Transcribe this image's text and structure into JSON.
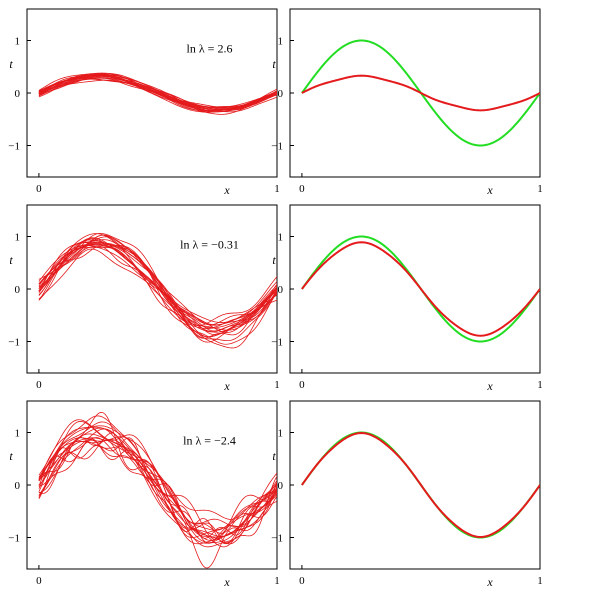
{
  "figure": {
    "panels": [
      {
        "id": "row1-left",
        "annotation": "ln λ = 2.6",
        "mode": "ensemble",
        "amplitude": 0.32,
        "spread": 0.04,
        "wiggle": 0.02,
        "seed": 3
      },
      {
        "id": "row1-right",
        "annotation": "",
        "mode": "mean",
        "amplitude": 0.32,
        "seed": 0
      },
      {
        "id": "row2-left",
        "annotation": "ln λ = −0.31",
        "mode": "ensemble",
        "amplitude": 0.88,
        "spread": 0.18,
        "wiggle": 0.12,
        "seed": 11
      },
      {
        "id": "row2-right",
        "annotation": "",
        "mode": "mean",
        "amplitude": 0.88,
        "seed": 0
      },
      {
        "id": "row3-left",
        "annotation": "ln λ = −2.4",
        "mode": "ensemble",
        "amplitude": 1.0,
        "spread": 0.22,
        "wiggle": 0.25,
        "seed": 27
      },
      {
        "id": "row3-right",
        "annotation": "",
        "mode": "mean",
        "amplitude": 0.98,
        "seed": 0
      }
    ]
  },
  "chart_data": {
    "type": "line",
    "xlabel": "x",
    "ylabel": "t",
    "xlim": [
      -0.05,
      1.0
    ],
    "ylim": [
      -1.6,
      1.6
    ],
    "xticks": [
      0,
      1
    ],
    "yticks": [
      -1,
      0,
      1
    ],
    "ytick_labels": [
      "−1",
      "0",
      "1"
    ],
    "true_function": "sin(2πx)",
    "colors": {
      "fits": "#e41a1c",
      "true": "#22dd22",
      "mean": "#e41a1c"
    },
    "ensemble_size": 20,
    "panels": [
      {
        "annotation": "ln λ = 2.6",
        "series_amplitude_mean": 0.32
      },
      {
        "annotation": "",
        "series": [
          {
            "name": "",
            "values_fn": "sin(2πx)"
          },
          {
            "name": "",
            "amplitude": 0.32
          }
        ]
      },
      {
        "annotation": "ln λ = −0.31",
        "series_amplitude_mean": 0.88
      },
      {
        "annotation": "",
        "series": [
          {
            "name": "",
            "values_fn": "sin(2πx)"
          },
          {
            "name": "",
            "amplitude": 0.88
          }
        ]
      },
      {
        "annotation": "ln λ = −2.4",
        "series_amplitude_mean": 1.0
      },
      {
        "annotation": "",
        "series": [
          {
            "name": "",
            "values_fn": "sin(2πx)"
          },
          {
            "name": "",
            "amplitude": 0.98
          }
        ]
      }
    ]
  }
}
